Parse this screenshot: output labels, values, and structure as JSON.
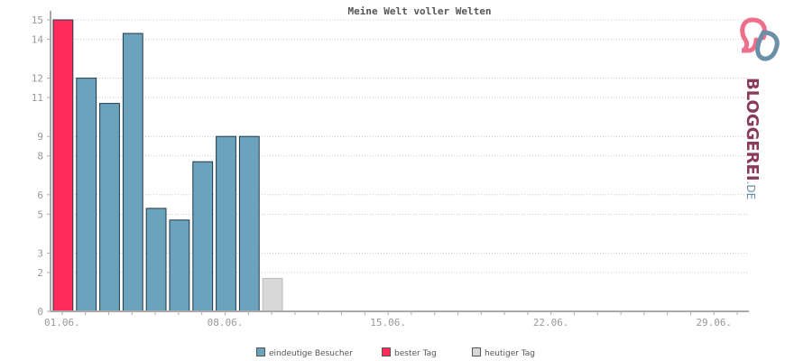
{
  "chart_data": {
    "type": "bar",
    "title": "Meine Welt voller Welten",
    "y_ticks": [
      "0",
      "2",
      "3",
      "5",
      "6",
      "8",
      "9",
      "11",
      "12",
      "14",
      "15"
    ],
    "ylim": [
      0,
      15
    ],
    "x_tick_labels": [
      {
        "day": 1,
        "label": "01.06."
      },
      {
        "day": 8,
        "label": "08.06."
      },
      {
        "day": 15,
        "label": "15.06."
      },
      {
        "day": 22,
        "label": "22.06."
      },
      {
        "day": 29,
        "label": "29.06."
      }
    ],
    "days": [
      1,
      2,
      3,
      4,
      5,
      6,
      7,
      8,
      9,
      10
    ],
    "values": [
      15,
      12,
      10.7,
      14.3,
      5.3,
      4.7,
      7.7,
      9,
      9,
      1.7
    ],
    "bar_types": [
      "best",
      "visitor",
      "visitor",
      "visitor",
      "visitor",
      "visitor",
      "visitor",
      "visitor",
      "visitor",
      "today"
    ],
    "day_count": 30,
    "grid": true,
    "legend_placement": "bottom",
    "colors": {
      "visitor": "#6ba2bc",
      "best": "#ff2b5a",
      "today": "#d8d8d8",
      "grid": "#c8c8c8",
      "axis": "#aaaaaa"
    },
    "legend": [
      {
        "key": "visitor",
        "label": "eindeutige Besucher"
      },
      {
        "key": "best",
        "label": "bester Tag"
      },
      {
        "key": "today",
        "label": "heutiger Tag"
      }
    ]
  },
  "logo": {
    "word_main": "BLOGGEREI",
    "word_suffix": ".DE"
  }
}
